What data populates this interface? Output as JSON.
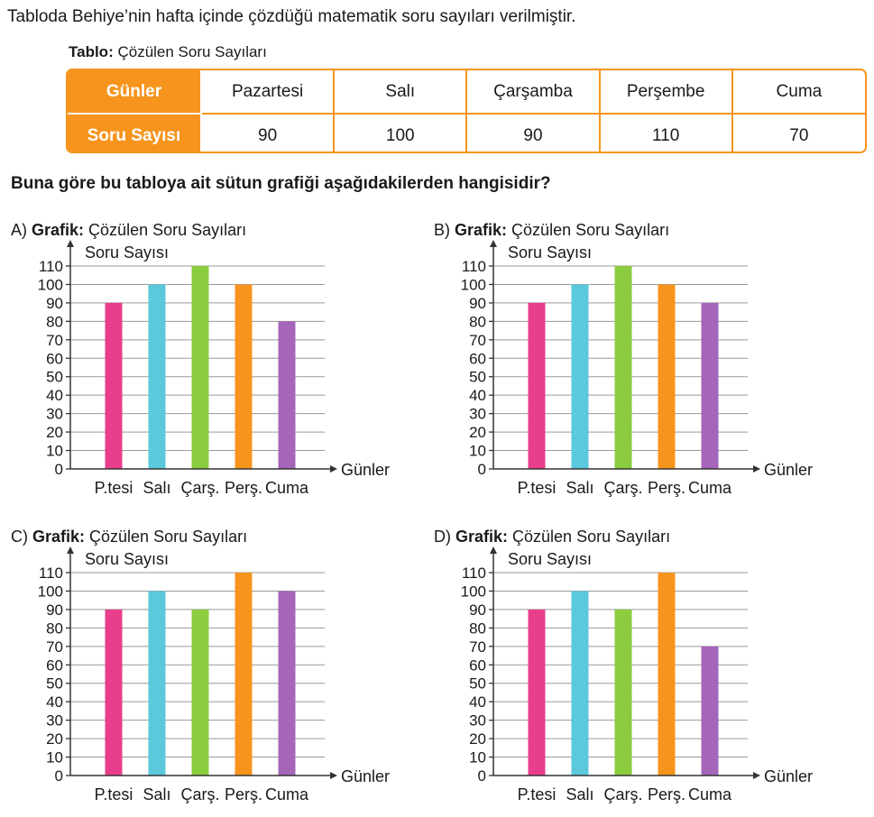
{
  "intro": "Tabloda Behiye’nin hafta içinde çözdüğü matematik soru sayıları verilmiştir.",
  "table": {
    "caption_bold": "Tablo:",
    "caption_text": " Çözülen Soru Sayıları",
    "row1_header": "Günler",
    "row2_header": "Soru Sayısı",
    "days": [
      "Pazartesi",
      "Salı",
      "Çarşamba",
      "Perşembe",
      "Cuma"
    ],
    "counts": [
      "90",
      "100",
      "90",
      "110",
      "70"
    ]
  },
  "question": "Buna göre bu tabloya ait sütun grafiği aşağıdakilerden hangisidir?",
  "colors": [
    "#e83e8c",
    "#5bc8dc",
    "#8ccc3f",
    "#f7941d",
    "#a565b9"
  ],
  "chart_data": [
    {
      "type": "bar",
      "option": "A)",
      "title_bold": "Grafik:",
      "title": "Çözülen Soru Sayıları",
      "ylabel": "Soru Sayısı",
      "xlabel": "Günler",
      "categories": [
        "P.tesi",
        "Salı",
        "Çarş.",
        "Perş.",
        "Cuma"
      ],
      "values": [
        90,
        100,
        110,
        100,
        80
      ],
      "yticks": [
        "0",
        "10",
        "20",
        "30",
        "40",
        "50",
        "60",
        "70",
        "80",
        "90",
        "100",
        "110"
      ],
      "ylim": [
        0,
        110
      ],
      "grid": true
    },
    {
      "type": "bar",
      "option": "B)",
      "title_bold": "Grafik:",
      "title": "Çözülen Soru Sayıları",
      "ylabel": "Soru Sayısı",
      "xlabel": "Günler",
      "categories": [
        "P.tesi",
        "Salı",
        "Çarş.",
        "Perş.",
        "Cuma"
      ],
      "values": [
        90,
        100,
        110,
        100,
        90
      ],
      "yticks": [
        "0",
        "10",
        "20",
        "30",
        "40",
        "50",
        "60",
        "70",
        "80",
        "90",
        "100",
        "110"
      ],
      "ylim": [
        0,
        110
      ],
      "grid": true
    },
    {
      "type": "bar",
      "option": "C)",
      "title_bold": "Grafik:",
      "title": "Çözülen Soru Sayıları",
      "ylabel": "Soru Sayısı",
      "xlabel": "Günler",
      "categories": [
        "P.tesi",
        "Salı",
        "Çarş.",
        "Perş.",
        "Cuma"
      ],
      "values": [
        90,
        100,
        90,
        110,
        100
      ],
      "yticks": [
        "0",
        "10",
        "20",
        "30",
        "40",
        "50",
        "60",
        "70",
        "80",
        "90",
        "100",
        "110"
      ],
      "ylim": [
        0,
        110
      ],
      "grid": true
    },
    {
      "type": "bar",
      "option": "D)",
      "title_bold": "Grafik:",
      "title": "Çözülen Soru Sayıları",
      "ylabel": "Soru Sayısı",
      "xlabel": "Günler",
      "categories": [
        "P.tesi",
        "Salı",
        "Çarş.",
        "Perş.",
        "Cuma"
      ],
      "values": [
        90,
        100,
        90,
        110,
        70
      ],
      "yticks": [
        "0",
        "10",
        "20",
        "30",
        "40",
        "50",
        "60",
        "70",
        "80",
        "90",
        "100",
        "110"
      ],
      "ylim": [
        0,
        110
      ],
      "grid": true
    }
  ]
}
